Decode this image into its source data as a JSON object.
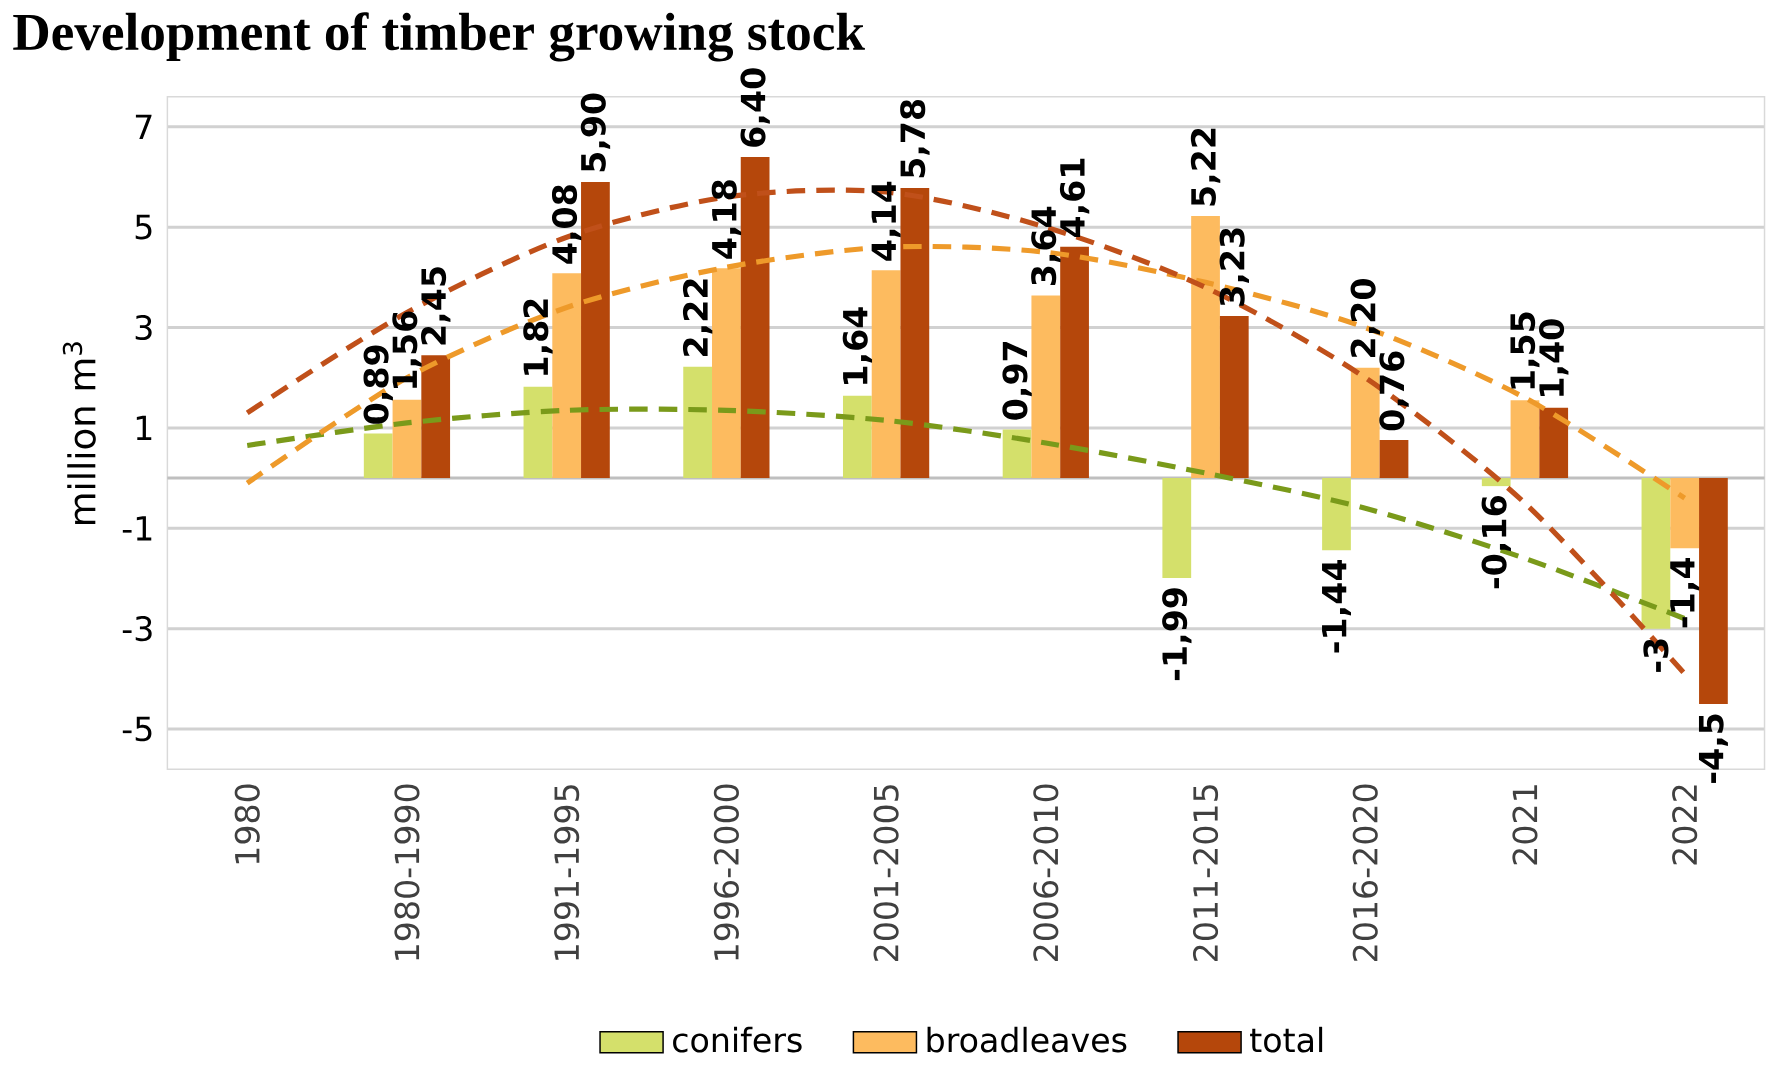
{
  "chart_data": {
    "type": "bar",
    "title": "Development of timber growing stock",
    "ylabel": "million m$^{3}$",
    "categories": [
      "1980",
      "1980-1990",
      "1991-1995",
      "1996-2000",
      "2001-2005",
      "2006-2010",
      "2011-2015",
      "2016-2020",
      "2021",
      "2022"
    ],
    "series": [
      {
        "name": "conifers",
        "color": "#d4e06b",
        "values": [
          null,
          0.89,
          1.82,
          2.22,
          1.64,
          0.97,
          -1.99,
          -1.44,
          -0.16,
          -3
        ],
        "value_labels": [
          null,
          "0,89",
          "1,82",
          "2,22",
          "1,64",
          "0,97",
          "-1,99",
          "-1,44",
          "-0,16",
          "-3"
        ]
      },
      {
        "name": "broadleaves",
        "color": "#fdbb5f",
        "values": [
          null,
          1.56,
          4.08,
          4.18,
          4.14,
          3.64,
          5.22,
          2.2,
          1.55,
          -1.4
        ],
        "value_labels": [
          null,
          "1,56",
          "4,08",
          "4,18",
          "4,14",
          "3,64",
          "5,22",
          "2,20",
          "1,55",
          "-1,4"
        ]
      },
      {
        "name": "total",
        "color": "#b5470b",
        "values": [
          null,
          2.45,
          5.9,
          6.4,
          5.78,
          4.61,
          3.23,
          0.76,
          1.4,
          -4.5
        ],
        "value_labels": [
          null,
          "2,45",
          "5,90",
          "6,40",
          "5,78",
          "4,61",
          "3,23",
          "0,76",
          "1,40",
          "-4,5"
        ]
      },
      {
        "type": "line",
        "line_style": "dashed",
        "color": "#7a9a1a",
        "values": [
          0.65,
          1.1,
          1.35,
          1.35,
          1.15,
          0.7,
          0.1,
          -0.6,
          -1.6,
          -2.8
        ]
      },
      {
        "type": "line",
        "line_style": "dashed",
        "color": "#ee9a2a",
        "values": [
          -0.1,
          2.0,
          3.4,
          4.2,
          4.6,
          4.5,
          3.9,
          3.0,
          1.6,
          -0.4
        ]
      },
      {
        "type": "line",
        "line_style": "dashed",
        "color": "#c0501a",
        "values": [
          1.3,
          3.3,
          4.8,
          5.6,
          5.7,
          5.0,
          3.8,
          2.0,
          -0.5,
          -3.9
        ]
      }
    ],
    "ylim": [
      -5.8,
      7.6
    ],
    "yticks": [
      -5,
      -3,
      -1,
      1,
      3,
      5,
      7
    ],
    "grid": "y",
    "legend": "bottom"
  }
}
